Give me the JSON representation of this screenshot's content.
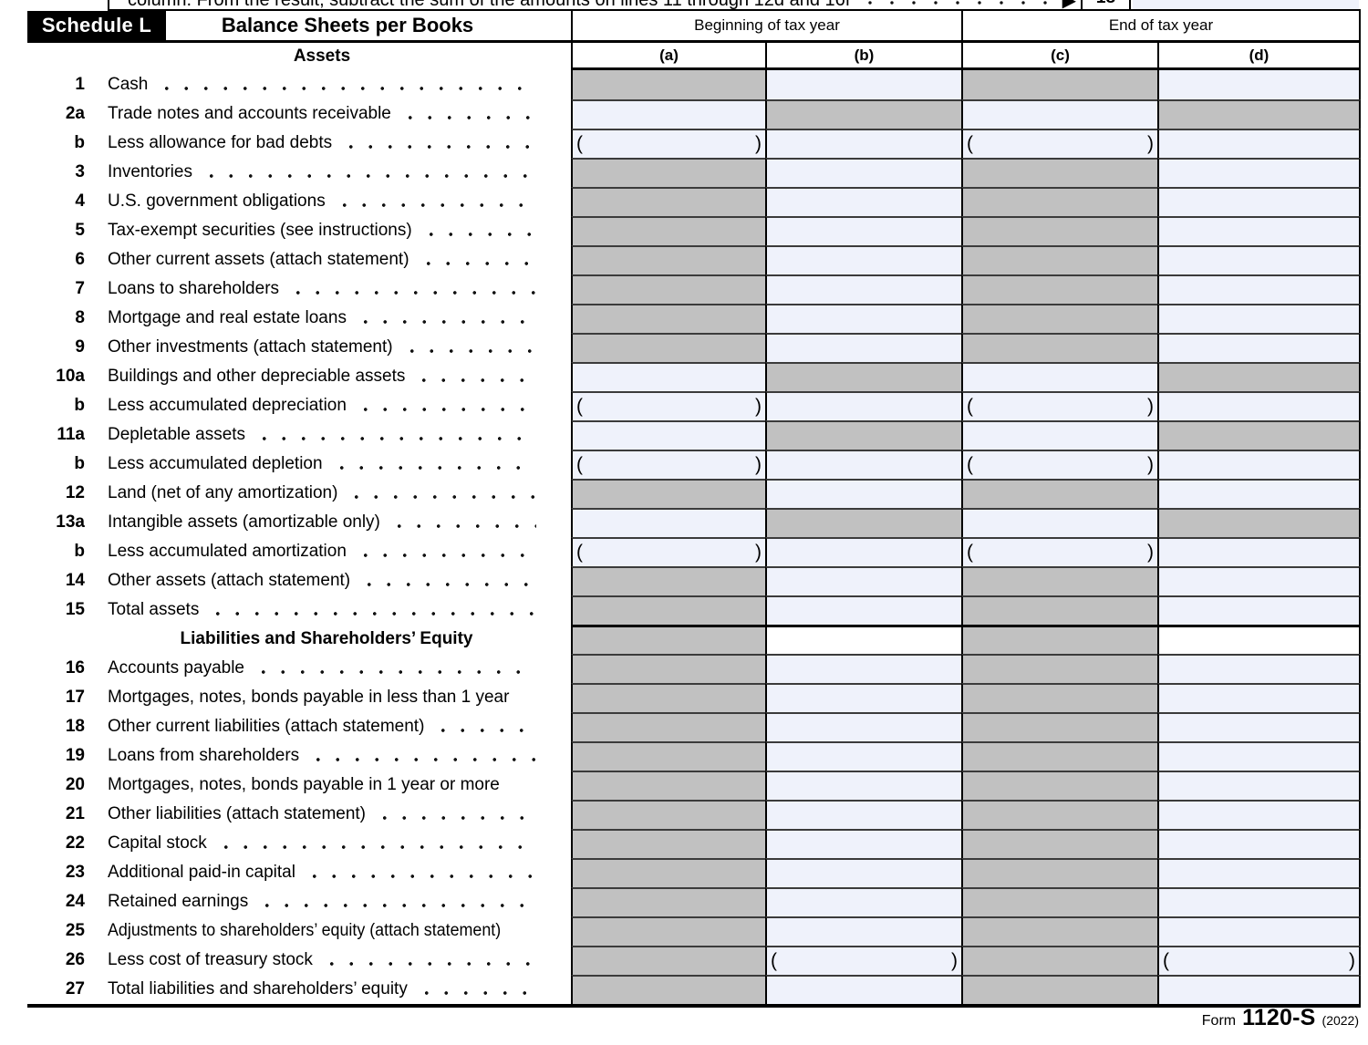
{
  "top_strip": {
    "clipped_text": "column. From the result, subtract the sum of the amounts on lines 11 through 12d and 16f",
    "arrow": "▶",
    "line_number": "18"
  },
  "header": {
    "schedule_label": "Schedule L",
    "title": "Balance Sheets per Books",
    "col_group_left": "Beginning of tax year",
    "col_group_right": "End of tax year",
    "columns": [
      "(a)",
      "(b)",
      "(c)",
      "(d)"
    ]
  },
  "sections": {
    "assets_header": "Assets",
    "liabilities_header": "Liabilities and Shareholders’ Equity"
  },
  "glyphs": {
    "paren_open": "(",
    "paren_close": ")"
  },
  "colors": {
    "shaded_cell": "#c1c1c1",
    "entry_cell": "#eff2fb",
    "border": "#000000"
  },
  "rows": [
    {
      "num": "1",
      "label": "Cash",
      "cells": [
        "shaded",
        "input",
        "shaded",
        "input"
      ],
      "dots": true
    },
    {
      "num": "2a",
      "label": "Trade notes and accounts receivable",
      "cells": [
        "input",
        "shaded",
        "input",
        "shaded"
      ],
      "dots": true
    },
    {
      "num": "b",
      "label": "Less allowance for bad debts",
      "cells": [
        "parens",
        "input",
        "parens",
        "input"
      ],
      "dots": true
    },
    {
      "num": "3",
      "label": "Inventories",
      "cells": [
        "shaded",
        "input",
        "shaded",
        "input"
      ],
      "dots": true
    },
    {
      "num": "4",
      "label": "U.S. government obligations",
      "cells": [
        "shaded",
        "input",
        "shaded",
        "input"
      ],
      "dots": true
    },
    {
      "num": "5",
      "label": "Tax-exempt securities (see instructions)",
      "cells": [
        "shaded",
        "input",
        "shaded",
        "input"
      ],
      "dots": true
    },
    {
      "num": "6",
      "label": "Other current assets (attach statement)",
      "cells": [
        "shaded",
        "input",
        "shaded",
        "input"
      ],
      "dots": true
    },
    {
      "num": "7",
      "label": "Loans to shareholders",
      "cells": [
        "shaded",
        "input",
        "shaded",
        "input"
      ],
      "dots": true
    },
    {
      "num": "8",
      "label": "Mortgage and real estate loans",
      "cells": [
        "shaded",
        "input",
        "shaded",
        "input"
      ],
      "dots": true
    },
    {
      "num": "9",
      "label": "Other investments (attach statement)",
      "cells": [
        "shaded",
        "input",
        "shaded",
        "input"
      ],
      "dots": true
    },
    {
      "num": "10a",
      "label": "Buildings and other depreciable assets",
      "cells": [
        "input",
        "shaded",
        "input",
        "shaded"
      ],
      "dots": true
    },
    {
      "num": "b",
      "label": "Less accumulated depreciation",
      "cells": [
        "parens",
        "input",
        "parens",
        "input"
      ],
      "dots": true
    },
    {
      "num": "11a",
      "label": "Depletable assets",
      "cells": [
        "input",
        "shaded",
        "input",
        "shaded"
      ],
      "dots": true
    },
    {
      "num": "b",
      "label": "Less accumulated depletion",
      "cells": [
        "parens",
        "input",
        "parens",
        "input"
      ],
      "dots": true
    },
    {
      "num": "12",
      "label": "Land (net of any amortization)",
      "cells": [
        "shaded",
        "input",
        "shaded",
        "input"
      ],
      "dots": true
    },
    {
      "num": "13a",
      "label": "Intangible assets (amortizable only)",
      "cells": [
        "input",
        "shaded",
        "input",
        "shaded"
      ],
      "dots": true
    },
    {
      "num": "b",
      "label": "Less accumulated amortization",
      "cells": [
        "parens",
        "input",
        "parens",
        "input"
      ],
      "dots": true
    },
    {
      "num": "14",
      "label": "Other assets (attach statement)",
      "cells": [
        "shaded",
        "input",
        "shaded",
        "input"
      ],
      "dots": true
    },
    {
      "num": "15",
      "label": "Total assets",
      "cells": [
        "shaded",
        "input",
        "shaded",
        "input"
      ],
      "dots": true
    },
    {
      "type": "section",
      "label": "Liabilities and Shareholders’ Equity",
      "cells": [
        "shaded",
        "white",
        "shaded",
        "white"
      ]
    },
    {
      "num": "16",
      "label": "Accounts payable",
      "cells": [
        "shaded",
        "input",
        "shaded",
        "input"
      ],
      "dots": true
    },
    {
      "num": "17",
      "label": "Mortgages, notes, bonds payable in less than 1 year",
      "cells": [
        "shaded",
        "input",
        "shaded",
        "input"
      ],
      "dots": false
    },
    {
      "num": "18",
      "label": "Other current liabilities (attach statement)",
      "cells": [
        "shaded",
        "input",
        "shaded",
        "input"
      ],
      "dots": true
    },
    {
      "num": "19",
      "label": "Loans from shareholders",
      "cells": [
        "shaded",
        "input",
        "shaded",
        "input"
      ],
      "dots": true
    },
    {
      "num": "20",
      "label": "Mortgages, notes, bonds payable in 1 year or more",
      "cells": [
        "shaded",
        "input",
        "shaded",
        "input"
      ],
      "dots": false
    },
    {
      "num": "21",
      "label": "Other liabilities (attach statement)",
      "cells": [
        "shaded",
        "input",
        "shaded",
        "input"
      ],
      "dots": true
    },
    {
      "num": "22",
      "label": "Capital stock",
      "cells": [
        "shaded",
        "input",
        "shaded",
        "input"
      ],
      "dots": true
    },
    {
      "num": "23",
      "label": "Additional paid-in capital",
      "cells": [
        "shaded",
        "input",
        "shaded",
        "input"
      ],
      "dots": true
    },
    {
      "num": "24",
      "label": "Retained earnings",
      "cells": [
        "shaded",
        "input",
        "shaded",
        "input"
      ],
      "dots": true
    },
    {
      "num": "25",
      "label": "Adjustments to shareholders’ equity (attach statement)",
      "cells": [
        "shaded",
        "input",
        "shaded",
        "input"
      ],
      "dots": false,
      "tight": true
    },
    {
      "num": "26",
      "label": "Less cost of treasury stock",
      "cells": [
        "shaded",
        "parens",
        "shaded",
        "parens"
      ],
      "dots": true
    },
    {
      "num": "27",
      "label": "Total liabilities and shareholders’ equity",
      "cells": [
        "shaded",
        "input",
        "shaded",
        "input"
      ],
      "dots": true
    }
  ],
  "footer": {
    "form_prefix": "Form",
    "form_number": "1120-S",
    "form_year": "(2022)"
  }
}
